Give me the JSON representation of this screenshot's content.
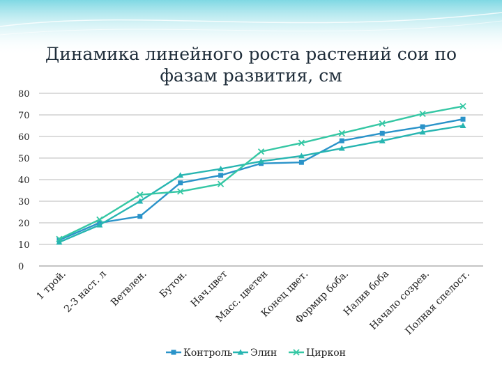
{
  "chart_data": {
    "type": "line",
    "title": "Динамика линейного роста растений сои по фазам развития, см",
    "categories": [
      "1 трой.",
      "2-3 наст. л",
      "Ветвлен.",
      "Бутон.",
      "Нач.цвет",
      "Масс. цветен",
      "Конец цвет.",
      "Формир боба.",
      "Налив боба",
      "Начало созрев.",
      "Полная спелост."
    ],
    "ylim": [
      0,
      80
    ],
    "yticks": [
      0,
      10,
      20,
      30,
      40,
      50,
      60,
      70,
      80
    ],
    "grid": true,
    "legend_position": "bottom",
    "series": [
      {
        "name": "Контроль",
        "marker": "square",
        "color": "#2a93c9",
        "values": [
          12,
          20,
          23,
          38.5,
          42,
          47.5,
          48,
          58,
          61.5,
          64.5,
          68
        ]
      },
      {
        "name": "Элин",
        "marker": "triangle",
        "color": "#27b5b1",
        "values": [
          11,
          19,
          30,
          42,
          45,
          48.5,
          51,
          54.5,
          58,
          62,
          65
        ]
      },
      {
        "name": "Циркон",
        "marker": "x",
        "color": "#35c7a4",
        "values": [
          12.5,
          21.5,
          33,
          34.5,
          38,
          53,
          57,
          61.5,
          66,
          70.5,
          74
        ]
      }
    ]
  }
}
